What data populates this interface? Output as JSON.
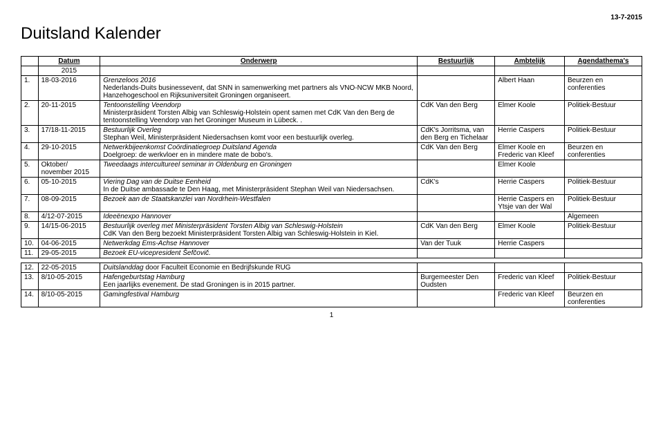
{
  "header": {
    "date": "13-7-2015",
    "title": "Duitsland Kalender"
  },
  "columns": {
    "datum": "Datum",
    "onderwerp": "Onderwerp",
    "bestuurlijk": "Bestuurlijk",
    "ambtelijk": "Ambtelijk",
    "agenda": "Agendathema's"
  },
  "year": "2015",
  "rows": [
    {
      "n": "1.",
      "datum": "18-03-2016",
      "title": "Grenzeloos 2016",
      "desc": "Nederlands-Duits businessevent, dat SNN in samenwerking met partners als VNO-NCW MKB Noord, Hanzehogeschool en Rijksuniversiteit Groningen organiseert.",
      "best": "",
      "amb": "Albert Haan",
      "ag": "Beurzen en conferenties"
    },
    {
      "n": "2.",
      "datum": "20-11-2015",
      "title": "Tentoonstelling Veendorp",
      "desc": "Ministerpräsident Torsten Albig van Schleswig-Holstein opent samen met CdK Van den Berg de tentoonstelling Veendorp van het Groninger Museum in Lübeck. .",
      "best": "CdK Van den Berg",
      "amb": "Elmer Koole",
      "ag": "Politiek-Bestuur"
    },
    {
      "n": "3.",
      "datum": "17/18-11-2015",
      "title": "Bestuurlijk Overleg",
      "desc": "Stephan Weil, Ministerpräsident Niedersachsen komt voor een bestuurlijk overleg.",
      "best": "CdK's Jorritsma, van den Berg en Tichelaar",
      "amb": "Herrie Caspers",
      "ag": "Politiek-Bestuur"
    },
    {
      "n": "4.",
      "datum": "29-10-2015",
      "title": "Netwerkbijeenkomst Coördinatiegroep Duitsland Agenda",
      "desc": "Doelgroep: de werkvloer en in mindere mate de bobo's.",
      "best": "CdK Van den Berg",
      "amb": "Elmer Koole en Frederic van Kleef",
      "ag": "Beurzen en conferenties"
    },
    {
      "n": "5.",
      "datum": "Oktober/ november 2015",
      "title": "Tweedaags intercultureel seminar in Oldenburg en Groningen",
      "desc": "",
      "best": "",
      "amb": "Elmer Koole",
      "ag": ""
    },
    {
      "n": "6.",
      "datum": "05-10-2015",
      "title": "Viering Dag van de Duitse Eenheid",
      "desc": "In de Duitse ambassade te Den Haag, met Ministerpräsident Stephan Weil van Niedersachsen.",
      "best": "CdK's",
      "amb": "Herrie Caspers",
      "ag": "Politiek-Bestuur"
    },
    {
      "n": "7.",
      "datum": "08-09-2015",
      "title": "Bezoek aan de Staatskanzlei van Nordrhein-Westfalen",
      "desc": "",
      "best": "",
      "amb": "Herrie Caspers en Ytsje van der Wal",
      "ag": "Politiek-Bestuur"
    },
    {
      "n": "8.",
      "datum": "4/12-07-2015",
      "title": "Ideeënexpo Hannover",
      "desc": "",
      "best": "",
      "amb": "",
      "ag": "Algemeen"
    },
    {
      "n": "9.",
      "datum": "14/15-06-2015",
      "title": "Bestuurlijk overleg met Ministerpräsident Torsten Albig van Schleswig-Holstein",
      "desc": "CdK Van den Berg bezoekt Ministerpräsident Torsten Albig van Schleswig-Holstein in Kiel.",
      "best": "CdK Van den Berg",
      "amb": "Elmer Koole",
      "ag": "Politiek-Bestuur"
    },
    {
      "n": "10.",
      "datum": "04-06-2015",
      "title": "Netwerkdag Ems-Achse Hannover",
      "desc": "",
      "best": "Van der Tuuk",
      "amb": "Herrie Caspers",
      "ag": ""
    },
    {
      "n": "11.",
      "datum": "29-05-2015",
      "title": "Bezoek EU-vicepresident Šefčovič.",
      "desc": "",
      "best": "",
      "amb": "",
      "ag": ""
    }
  ],
  "rows2": [
    {
      "n": "12.",
      "datum": "22-05-2015",
      "title": "Duitslanddag",
      "desc": " door Faculteit Economie en Bedrijfskunde RUG",
      "best": "",
      "amb": "",
      "ag": ""
    },
    {
      "n": "13.",
      "datum": "8/10-05-2015",
      "title": "Hafengeburtstag Hamburg",
      "desc": "Een jaarlijks evenement. De stad Groningen is in 2015 partner.",
      "best": "Burgemeester Den Oudsten",
      "amb": "Frederic van Kleef",
      "ag": "Politiek-Bestuur"
    },
    {
      "n": "14.",
      "datum": "8/10-05-2015",
      "title": "Gamingfestival Hamburg",
      "desc": "",
      "best": "",
      "amb": "Frederic van Kleef",
      "ag": "Beurzen en conferenties"
    }
  ],
  "page_number": "1"
}
